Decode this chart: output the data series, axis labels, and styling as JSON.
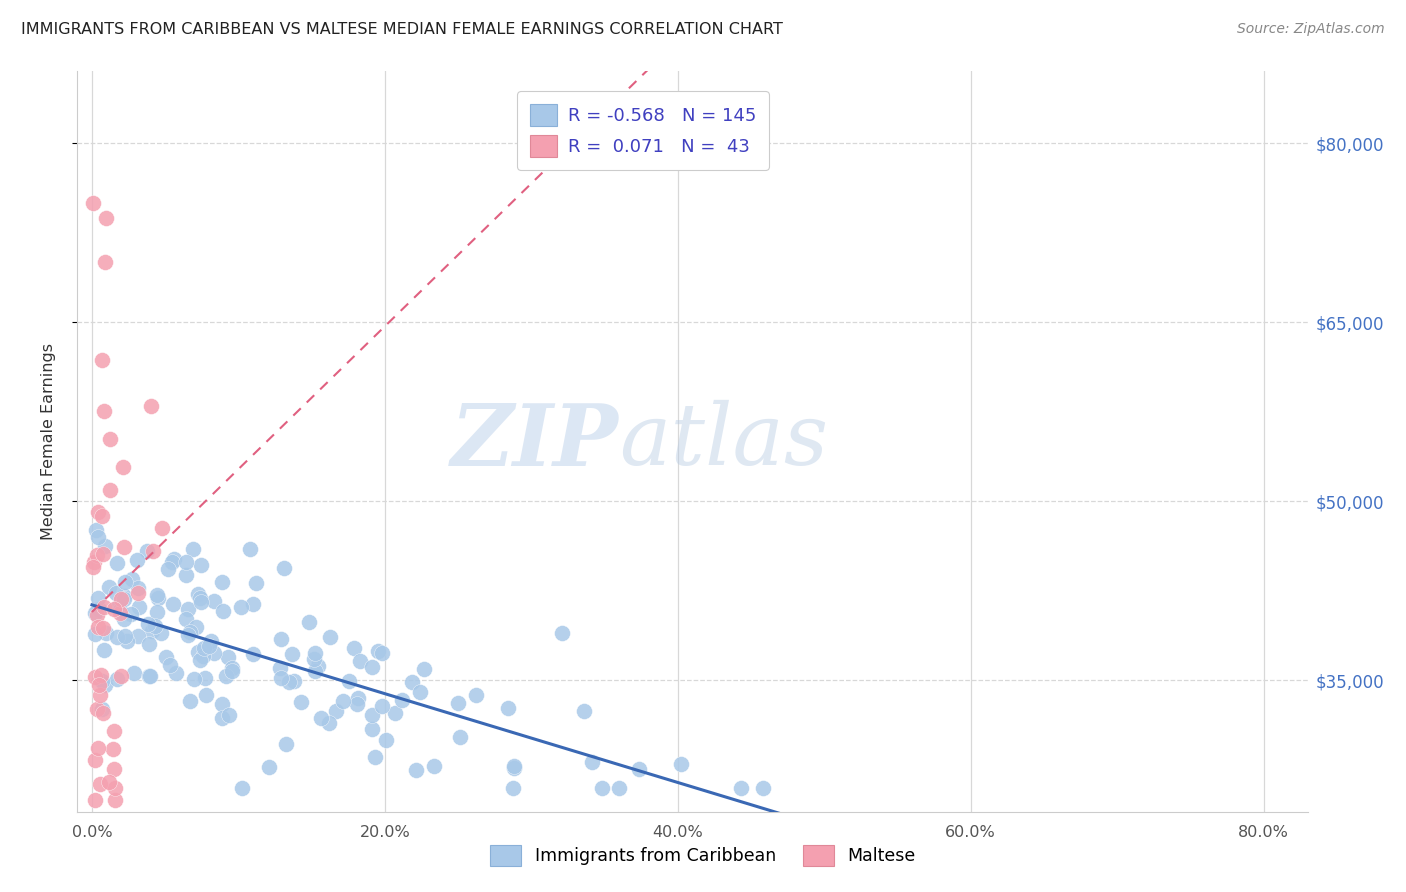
{
  "title": "IMMIGRANTS FROM CARIBBEAN VS MALTESE MEDIAN FEMALE EARNINGS CORRELATION CHART",
  "source": "Source: ZipAtlas.com",
  "ylabel": "Median Female Earnings",
  "watermark_zip": "ZIP",
  "watermark_atlas": "atlas",
  "legend_label1": "Immigrants from Caribbean",
  "legend_label2": "Maltese",
  "r1": -0.568,
  "n1": 145,
  "r2": 0.071,
  "n2": 43,
  "color1": "#a8c8e8",
  "color2": "#f4a0b0",
  "trendline1_color": "#3a68b4",
  "trendline2_color": "#e06080",
  "ytick_labels": [
    "$35,000",
    "$50,000",
    "$65,000",
    "$80,000"
  ],
  "ytick_values": [
    35000,
    50000,
    65000,
    80000
  ],
  "xtick_labels": [
    "0.0%",
    "20.0%",
    "40.0%",
    "60.0%",
    "80.0%"
  ],
  "xtick_values": [
    0.0,
    0.2,
    0.4,
    0.6,
    0.8
  ],
  "xlim": [
    -0.01,
    0.83
  ],
  "ylim": [
    24000,
    86000
  ],
  "background_color": "#ffffff",
  "grid_color": "#e0e0e0",
  "title_color": "#222222",
  "source_color": "#888888",
  "ylabel_color": "#333333",
  "right_tick_color": "#4472c4",
  "legend_text_color": "#4040c0"
}
